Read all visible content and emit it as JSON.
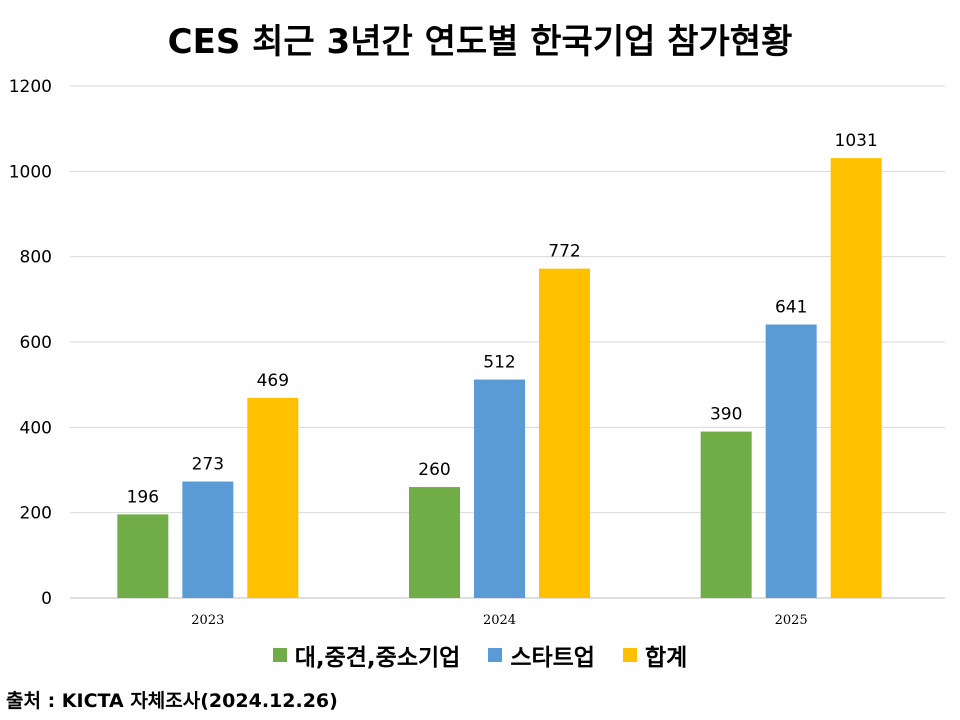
{
  "chart_data": {
    "type": "bar",
    "title": "CES 최근 3년간 연도별 한국기업 참가현황",
    "categories": [
      "2023",
      "2024",
      "2025"
    ],
    "series": [
      {
        "name": "대,중견,중소기업",
        "color": "#70AD47",
        "values": [
          196,
          260,
          390
        ]
      },
      {
        "name": "스타트업",
        "color": "#5B9BD5",
        "values": [
          273,
          512,
          641
        ]
      },
      {
        "name": "합계",
        "color": "#FFC000",
        "values": [
          469,
          772,
          1031
        ]
      }
    ],
    "ylim": [
      0,
      1200
    ],
    "yticks": [
      "0",
      "200",
      "400",
      "600",
      "800",
      "1000",
      "1200"
    ],
    "grid": true,
    "legend_position": "bottom"
  },
  "source": "출처 : KICTA 자체조사(2024.12.26)"
}
